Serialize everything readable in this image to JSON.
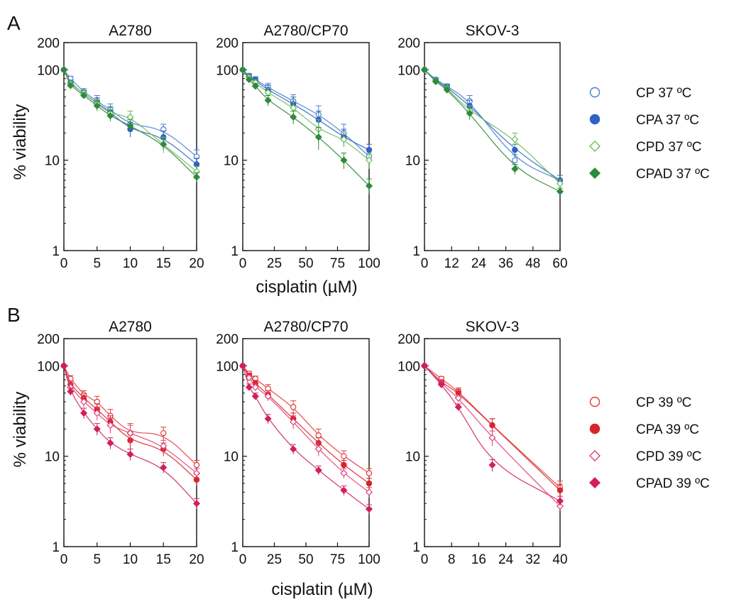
{
  "panel_labels": [
    "A",
    "B"
  ],
  "xlabel": "cisplatin (µM)",
  "ylabel": "% viability",
  "legend_A": [
    {
      "label": "CP 37 ºC",
      "color": "#4a7fd0",
      "marker": "open-circle"
    },
    {
      "label": "CPA 37 ºC",
      "color": "#2f62c4",
      "marker": "filled-circle"
    },
    {
      "label": "CPD 37 ºC",
      "color": "#6dbb5a",
      "marker": "open-diamond"
    },
    {
      "label": "CPAD 37 ºC",
      "color": "#2f8a3a",
      "marker": "filled-diamond"
    }
  ],
  "legend_B": [
    {
      "label": "CP 39 ºC",
      "color": "#e23a3a",
      "marker": "open-circle"
    },
    {
      "label": "CPA 39 ºC",
      "color": "#d8242c",
      "marker": "filled-circle"
    },
    {
      "label": "CPD 39 ºC",
      "color": "#e0407a",
      "marker": "open-diamond"
    },
    {
      "label": "CPAD 39 ºC",
      "color": "#d0205a",
      "marker": "filled-diamond"
    }
  ],
  "chart_data": [
    {
      "panel": "A",
      "type": "line",
      "title": "A2780",
      "yscale": "log",
      "ylim": [
        1,
        200
      ],
      "yticks": [
        1,
        10,
        100,
        200
      ],
      "xlim": [
        0,
        20
      ],
      "xticks": [
        0,
        5,
        10,
        15,
        20
      ],
      "series": [
        {
          "name": "CP 37 ºC",
          "x": [
            0,
            1,
            3,
            5,
            7,
            10,
            15,
            20
          ],
          "y": [
            100,
            80,
            57,
            45,
            36,
            25,
            22,
            11
          ],
          "err": [
            0,
            5,
            5,
            7,
            6,
            4,
            3,
            2
          ]
        },
        {
          "name": "CPA 37 ºC",
          "x": [
            0,
            1,
            3,
            5,
            7,
            10,
            15,
            20
          ],
          "y": [
            100,
            72,
            54,
            43,
            34,
            22,
            18,
            9
          ],
          "err": [
            0,
            5,
            5,
            6,
            5,
            4,
            3,
            1.5
          ]
        },
        {
          "name": "CPD 37 ºC",
          "x": [
            0,
            1,
            3,
            5,
            7,
            10,
            15,
            20
          ],
          "y": [
            100,
            70,
            55,
            42,
            33,
            30,
            15,
            7.5
          ],
          "err": [
            0,
            5,
            5,
            5,
            5,
            5,
            3,
            1
          ]
        },
        {
          "name": "CPAD 37 ºC",
          "x": [
            0,
            1,
            3,
            5,
            7,
            10,
            15,
            20
          ],
          "y": [
            100,
            67,
            52,
            40,
            31,
            24,
            15,
            6.5
          ],
          "err": [
            0,
            4,
            4,
            5,
            4,
            4,
            2,
            0.8
          ]
        }
      ]
    },
    {
      "panel": "A",
      "type": "line",
      "title": "A2780/CP70",
      "yscale": "log",
      "ylim": [
        1,
        200
      ],
      "yticks": [
        1,
        10,
        100,
        200
      ],
      "xlim": [
        0,
        100
      ],
      "xticks": [
        0,
        25,
        50,
        75,
        100
      ],
      "series": [
        {
          "name": "CP 37 ºC",
          "x": [
            0,
            5,
            10,
            20,
            40,
            60,
            80,
            100
          ],
          "y": [
            100,
            86,
            78,
            64,
            45,
            32,
            20,
            11
          ],
          "err": [
            0,
            5,
            6,
            7,
            8,
            8,
            5,
            2
          ]
        },
        {
          "name": "CPA 37 ºC",
          "x": [
            0,
            5,
            10,
            20,
            40,
            60,
            80,
            100
          ],
          "y": [
            100,
            84,
            76,
            60,
            42,
            28,
            18,
            13
          ],
          "err": [
            0,
            5,
            6,
            8,
            8,
            7,
            4,
            2
          ]
        },
        {
          "name": "CPD 37 ºC",
          "x": [
            0,
            5,
            10,
            20,
            40,
            60,
            80,
            100
          ],
          "y": [
            100,
            82,
            72,
            56,
            38,
            22,
            17,
            10
          ],
          "err": [
            0,
            5,
            5,
            6,
            6,
            6,
            3,
            2
          ]
        },
        {
          "name": "CPAD 37 ºC",
          "x": [
            0,
            5,
            10,
            20,
            40,
            60,
            80,
            100
          ],
          "y": [
            100,
            78,
            66,
            46,
            30,
            18,
            10,
            5.2
          ],
          "err": [
            0,
            5,
            5,
            6,
            5,
            5,
            2,
            1
          ]
        }
      ]
    },
    {
      "panel": "A",
      "type": "line",
      "title": "SKOV-3",
      "yscale": "log",
      "ylim": [
        1,
        200
      ],
      "yticks": [
        1,
        10,
        100,
        200
      ],
      "xlim": [
        0,
        60
      ],
      "xticks": [
        0,
        12,
        24,
        36,
        48,
        60
      ],
      "series": [
        {
          "name": "CP 37 ºC",
          "x": [
            0,
            5,
            10,
            20,
            40,
            60
          ],
          "y": [
            100,
            78,
            66,
            45,
            10,
            6
          ],
          "err": [
            0,
            4,
            4,
            7,
            1.5,
            0.8
          ]
        },
        {
          "name": "CPA 37 ºC",
          "x": [
            0,
            5,
            10,
            20,
            40,
            60
          ],
          "y": [
            100,
            76,
            64,
            40,
            13,
            6
          ],
          "err": [
            0,
            4,
            4,
            6,
            2,
            0.8
          ]
        },
        {
          "name": "CPD 37 ºC",
          "x": [
            0,
            5,
            10,
            20,
            40,
            60
          ],
          "y": [
            100,
            75,
            62,
            35,
            17,
            5.5
          ],
          "err": [
            0,
            4,
            4,
            5,
            3,
            0.6
          ]
        },
        {
          "name": "CPAD 37 ºC",
          "x": [
            0,
            5,
            10,
            20,
            40,
            60
          ],
          "y": [
            100,
            74,
            60,
            33,
            8,
            4.5
          ],
          "err": [
            0,
            4,
            4,
            5,
            1,
            0.4
          ]
        }
      ]
    },
    {
      "panel": "B",
      "type": "line",
      "title": "A2780",
      "yscale": "log",
      "ylim": [
        1,
        200
      ],
      "yticks": [
        1,
        10,
        100,
        200
      ],
      "xlim": [
        0,
        20
      ],
      "xticks": [
        0,
        5,
        10,
        15,
        20
      ],
      "series": [
        {
          "name": "CP 39 ºC",
          "x": [
            0,
            1,
            3,
            5,
            7,
            10,
            15,
            20
          ],
          "y": [
            100,
            72,
            48,
            40,
            28,
            18,
            18,
            8
          ],
          "err": [
            0,
            6,
            5,
            6,
            5,
            5,
            3,
            1
          ]
        },
        {
          "name": "CPA 39 ºC",
          "x": [
            0,
            1,
            3,
            5,
            7,
            10,
            15,
            20
          ],
          "y": [
            100,
            62,
            44,
            33,
            24,
            15,
            12,
            5.5
          ],
          "err": [
            0,
            6,
            5,
            5,
            4,
            3,
            2,
            0.8
          ]
        },
        {
          "name": "CPD 39 ºC",
          "x": [
            0,
            1,
            3,
            5,
            7,
            10,
            15,
            20
          ],
          "y": [
            100,
            58,
            40,
            30,
            22,
            18,
            13,
            6.5
          ],
          "err": [
            0,
            5,
            5,
            5,
            4,
            4,
            2,
            0.8
          ]
        },
        {
          "name": "CPAD 39 ºC",
          "x": [
            0,
            1,
            3,
            5,
            7,
            10,
            15,
            20
          ],
          "y": [
            100,
            52,
            30,
            20,
            14,
            10.5,
            7.5,
            3
          ],
          "err": [
            0,
            5,
            4,
            3,
            2,
            1.5,
            1,
            0.4
          ]
        }
      ]
    },
    {
      "panel": "B",
      "type": "line",
      "title": "A2780/CP70",
      "yscale": "log",
      "ylim": [
        1,
        200
      ],
      "yticks": [
        1,
        10,
        100,
        200
      ],
      "xlim": [
        0,
        100
      ],
      "xticks": [
        0,
        25,
        50,
        75,
        100
      ],
      "series": [
        {
          "name": "CP 39 ºC",
          "x": [
            0,
            5,
            10,
            20,
            40,
            60,
            80,
            100
          ],
          "y": [
            100,
            82,
            72,
            56,
            35,
            17,
            10,
            6.5
          ],
          "err": [
            0,
            5,
            5,
            6,
            6,
            3,
            1.5,
            0.8
          ]
        },
        {
          "name": "CPA 39 ºC",
          "x": [
            0,
            5,
            10,
            20,
            40,
            60,
            80,
            100
          ],
          "y": [
            100,
            78,
            64,
            48,
            26,
            14,
            8,
            5
          ],
          "err": [
            0,
            5,
            5,
            5,
            4,
            2,
            1,
            0.7
          ]
        },
        {
          "name": "CPD 39 ºC",
          "x": [
            0,
            5,
            10,
            20,
            40,
            60,
            80,
            100
          ],
          "y": [
            100,
            74,
            58,
            46,
            24,
            12,
            6.5,
            4
          ],
          "err": [
            0,
            5,
            5,
            5,
            4,
            2,
            0.8,
            0.5
          ]
        },
        {
          "name": "CPAD 39 ºC",
          "x": [
            0,
            5,
            10,
            20,
            40,
            60,
            80,
            100
          ],
          "y": [
            100,
            58,
            46,
            26,
            12,
            7,
            4.2,
            2.6
          ],
          "err": [
            0,
            5,
            4,
            3,
            1.5,
            0.8,
            0.5,
            0.3
          ]
        }
      ]
    },
    {
      "panel": "B",
      "type": "line",
      "title": "SKOV-3",
      "yscale": "log",
      "ylim": [
        1,
        200
      ],
      "yticks": [
        1,
        10,
        100,
        200
      ],
      "xlim": [
        0,
        40
      ],
      "xticks": [
        0,
        8,
        16,
        24,
        32,
        40
      ],
      "series": [
        {
          "name": "CP 39 ºC",
          "x": [
            0,
            5,
            10,
            20,
            40
          ],
          "y": [
            100,
            72,
            52,
            22,
            4.5
          ],
          "err": [
            0,
            4,
            5,
            4,
            0.8
          ]
        },
        {
          "name": "CPA 39 ºC",
          "x": [
            0,
            5,
            10,
            20,
            40
          ],
          "y": [
            100,
            66,
            50,
            22,
            4.2
          ],
          "err": [
            0,
            4,
            5,
            4,
            0.7
          ]
        },
        {
          "name": "CPD 39 ºC",
          "x": [
            0,
            5,
            10,
            20,
            40
          ],
          "y": [
            100,
            64,
            44,
            16,
            2.8
          ],
          "err": [
            0,
            4,
            4,
            3,
            0.3
          ]
        },
        {
          "name": "CPAD 39 ºC",
          "x": [
            0,
            5,
            10,
            20,
            40
          ],
          "y": [
            100,
            62,
            35,
            8,
            3.2
          ],
          "err": [
            0,
            4,
            3,
            1.2,
            0.4
          ]
        }
      ]
    }
  ]
}
